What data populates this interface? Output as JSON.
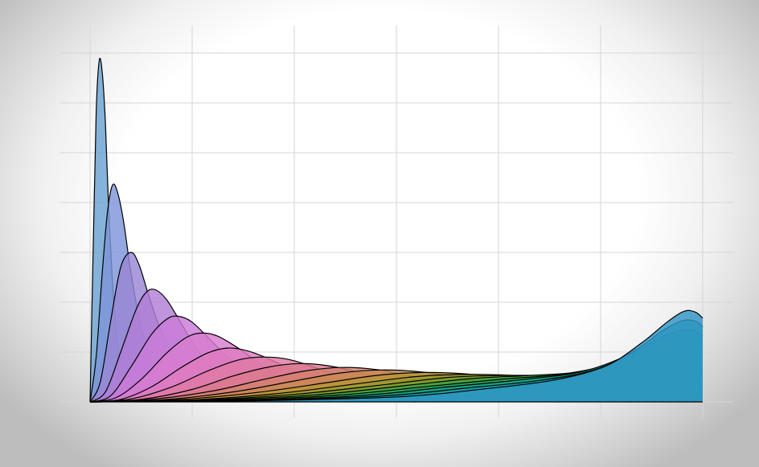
{
  "chart_data": {
    "type": "area",
    "title": "",
    "xlabel": "",
    "ylabel": "",
    "grid": true,
    "legend": "none",
    "xlim": [
      0,
      6
    ],
    "ylim": [
      0,
      7
    ],
    "x_gridlines": [
      0,
      1,
      2,
      3,
      4,
      5,
      6
    ],
    "y_gridlines": [
      0,
      1,
      2,
      3,
      4,
      5,
      6,
      7
    ],
    "series": [
      {
        "values": [
          [
            0.0,
            0.0
          ],
          [
            0.03,
            3.0
          ],
          [
            0.06,
            5.8
          ],
          [
            0.09,
            6.85
          ],
          [
            0.12,
            6.6
          ],
          [
            0.15,
            5.6
          ],
          [
            0.18,
            4.0
          ],
          [
            0.22,
            2.4
          ],
          [
            0.26,
            1.3
          ],
          [
            0.32,
            0.5
          ],
          [
            0.4,
            0.15
          ],
          [
            0.6,
            0.0
          ]
        ],
        "color": "#6ba2d2"
      },
      {
        "values": [
          [
            0.0,
            0.0
          ],
          [
            0.06,
            0.9
          ],
          [
            0.12,
            2.6
          ],
          [
            0.17,
            3.8
          ],
          [
            0.22,
            4.35
          ],
          [
            0.27,
            4.2
          ],
          [
            0.33,
            3.6
          ],
          [
            0.4,
            2.6
          ],
          [
            0.5,
            1.5
          ],
          [
            0.62,
            0.75
          ],
          [
            0.8,
            0.25
          ],
          [
            1.1,
            0.0
          ]
        ],
        "color": "#7e95d8"
      },
      {
        "values": [
          [
            0.0,
            0.0
          ],
          [
            0.1,
            0.4
          ],
          [
            0.2,
            1.6
          ],
          [
            0.3,
            2.7
          ],
          [
            0.4,
            3.0
          ],
          [
            0.48,
            2.75
          ],
          [
            0.58,
            2.1
          ],
          [
            0.7,
            1.4
          ],
          [
            0.85,
            0.8
          ],
          [
            1.05,
            0.35
          ],
          [
            1.3,
            0.1
          ],
          [
            1.6,
            0.0
          ]
        ],
        "color": "#9a86d6"
      },
      {
        "values": [
          [
            0.0,
            0.0
          ],
          [
            0.15,
            0.2
          ],
          [
            0.3,
            1.0
          ],
          [
            0.45,
            1.85
          ],
          [
            0.55,
            2.2
          ],
          [
            0.64,
            2.25
          ],
          [
            0.75,
            2.05
          ],
          [
            0.9,
            1.55
          ],
          [
            1.05,
            1.05
          ],
          [
            1.25,
            0.55
          ],
          [
            1.5,
            0.22
          ],
          [
            1.9,
            0.05
          ],
          [
            2.2,
            0.0
          ]
        ],
        "color": "#b17ed6"
      },
      {
        "values": [
          [
            0.0,
            0.0
          ],
          [
            0.2,
            0.12
          ],
          [
            0.4,
            0.7
          ],
          [
            0.6,
            1.35
          ],
          [
            0.75,
            1.66
          ],
          [
            0.86,
            1.72
          ],
          [
            1.0,
            1.6
          ],
          [
            1.2,
            1.2
          ],
          [
            1.4,
            0.8
          ],
          [
            1.65,
            0.42
          ],
          [
            2.0,
            0.15
          ],
          [
            2.4,
            0.03
          ],
          [
            2.7,
            0.0
          ]
        ],
        "color": "#c97bd8"
      },
      {
        "values": [
          [
            0.0,
            0.0
          ],
          [
            0.25,
            0.08
          ],
          [
            0.5,
            0.45
          ],
          [
            0.75,
            0.98
          ],
          [
            0.95,
            1.3
          ],
          [
            1.1,
            1.38
          ],
          [
            1.25,
            1.32
          ],
          [
            1.45,
            1.08
          ],
          [
            1.7,
            0.72
          ],
          [
            2.0,
            0.38
          ],
          [
            2.4,
            0.12
          ],
          [
            2.9,
            0.02
          ],
          [
            3.2,
            0.0
          ]
        ],
        "color": "#d87ccf"
      },
      {
        "values": [
          [
            0.0,
            0.0
          ],
          [
            0.3,
            0.05
          ],
          [
            0.6,
            0.3
          ],
          [
            0.9,
            0.7
          ],
          [
            1.15,
            0.98
          ],
          [
            1.35,
            1.08
          ],
          [
            1.55,
            1.02
          ],
          [
            1.8,
            0.82
          ],
          [
            2.1,
            0.52
          ],
          [
            2.45,
            0.27
          ],
          [
            2.9,
            0.08
          ],
          [
            3.4,
            0.0
          ]
        ],
        "color": "#de7bbf"
      },
      {
        "values": [
          [
            0.0,
            0.0
          ],
          [
            0.4,
            0.06
          ],
          [
            0.8,
            0.3
          ],
          [
            1.15,
            0.62
          ],
          [
            1.45,
            0.84
          ],
          [
            1.7,
            0.9
          ],
          [
            1.95,
            0.85
          ],
          [
            2.25,
            0.66
          ],
          [
            2.6,
            0.42
          ],
          [
            3.0,
            0.2
          ],
          [
            3.5,
            0.06
          ],
          [
            4.0,
            0.0
          ]
        ],
        "color": "#df7aa6"
      },
      {
        "values": [
          [
            0.0,
            0.0
          ],
          [
            0.5,
            0.05
          ],
          [
            1.0,
            0.25
          ],
          [
            1.4,
            0.52
          ],
          [
            1.75,
            0.7
          ],
          [
            2.05,
            0.77
          ],
          [
            2.35,
            0.72
          ],
          [
            2.7,
            0.56
          ],
          [
            3.1,
            0.36
          ],
          [
            3.6,
            0.17
          ],
          [
            4.1,
            0.05
          ],
          [
            4.6,
            0.0
          ]
        ],
        "color": "#dc7a8c"
      },
      {
        "values": [
          [
            0.0,
            0.0
          ],
          [
            0.6,
            0.05
          ],
          [
            1.2,
            0.22
          ],
          [
            1.7,
            0.45
          ],
          [
            2.1,
            0.62
          ],
          [
            2.45,
            0.69
          ],
          [
            2.8,
            0.65
          ],
          [
            3.2,
            0.5
          ],
          [
            3.65,
            0.32
          ],
          [
            4.2,
            0.15
          ],
          [
            4.8,
            0.04
          ],
          [
            5.3,
            0.0
          ]
        ],
        "color": "#d4806e"
      },
      {
        "values": [
          [
            0.0,
            0.0
          ],
          [
            0.7,
            0.04
          ],
          [
            1.4,
            0.2
          ],
          [
            2.0,
            0.42
          ],
          [
            2.45,
            0.58
          ],
          [
            2.85,
            0.64
          ],
          [
            3.25,
            0.6
          ],
          [
            3.7,
            0.47
          ],
          [
            4.2,
            0.3
          ],
          [
            4.8,
            0.14
          ],
          [
            5.4,
            0.05
          ],
          [
            6.0,
            0.01
          ]
        ],
        "color": "#c98a52"
      },
      {
        "values": [
          [
            0.0,
            0.0
          ],
          [
            0.8,
            0.04
          ],
          [
            1.6,
            0.18
          ],
          [
            2.3,
            0.38
          ],
          [
            2.8,
            0.53
          ],
          [
            3.25,
            0.59
          ],
          [
            3.7,
            0.56
          ],
          [
            4.2,
            0.45
          ],
          [
            4.75,
            0.31
          ],
          [
            5.3,
            0.2
          ],
          [
            5.7,
            0.15
          ],
          [
            6.0,
            0.14
          ]
        ],
        "color": "#b89536"
      },
      {
        "values": [
          [
            0.0,
            0.0
          ],
          [
            0.9,
            0.03
          ],
          [
            1.8,
            0.16
          ],
          [
            2.6,
            0.36
          ],
          [
            3.15,
            0.5
          ],
          [
            3.6,
            0.55
          ],
          [
            4.05,
            0.54
          ],
          [
            4.55,
            0.47
          ],
          [
            5.05,
            0.4
          ],
          [
            5.5,
            0.38
          ],
          [
            5.8,
            0.4
          ],
          [
            6.0,
            0.42
          ]
        ],
        "color": "#9a9a2e"
      },
      {
        "values": [
          [
            0.0,
            0.0
          ],
          [
            1.0,
            0.03
          ],
          [
            2.0,
            0.15
          ],
          [
            2.9,
            0.35
          ],
          [
            3.5,
            0.49
          ],
          [
            4.0,
            0.53
          ],
          [
            4.5,
            0.53
          ],
          [
            5.0,
            0.54
          ],
          [
            5.4,
            0.62
          ],
          [
            5.7,
            0.72
          ],
          [
            5.9,
            0.74
          ],
          [
            6.0,
            0.72
          ]
        ],
        "color": "#74a030"
      },
      {
        "values": [
          [
            0.0,
            0.0
          ],
          [
            1.1,
            0.03
          ],
          [
            2.2,
            0.14
          ],
          [
            3.1,
            0.33
          ],
          [
            3.75,
            0.47
          ],
          [
            4.3,
            0.53
          ],
          [
            4.8,
            0.6
          ],
          [
            5.25,
            0.78
          ],
          [
            5.6,
            0.95
          ],
          [
            5.85,
            1.0
          ],
          [
            6.0,
            0.93
          ]
        ],
        "color": "#3fa23f"
      },
      {
        "values": [
          [
            0.0,
            0.0
          ],
          [
            1.2,
            0.02
          ],
          [
            2.4,
            0.13
          ],
          [
            3.3,
            0.31
          ],
          [
            4.0,
            0.45
          ],
          [
            4.6,
            0.55
          ],
          [
            5.1,
            0.75
          ],
          [
            5.5,
            1.05
          ],
          [
            5.75,
            1.22
          ],
          [
            5.9,
            1.24
          ],
          [
            6.0,
            1.15
          ]
        ],
        "color": "#21a265"
      },
      {
        "values": [
          [
            0.0,
            0.0
          ],
          [
            1.3,
            0.02
          ],
          [
            2.6,
            0.12
          ],
          [
            3.5,
            0.3
          ],
          [
            4.2,
            0.44
          ],
          [
            4.8,
            0.6
          ],
          [
            5.25,
            0.92
          ],
          [
            5.55,
            1.25
          ],
          [
            5.78,
            1.43
          ],
          [
            5.92,
            1.43
          ],
          [
            6.0,
            1.32
          ]
        ],
        "color": "#10a187"
      },
      {
        "values": [
          [
            0.0,
            0.0
          ],
          [
            1.4,
            0.02
          ],
          [
            2.8,
            0.11
          ],
          [
            3.7,
            0.28
          ],
          [
            4.4,
            0.43
          ],
          [
            4.95,
            0.65
          ],
          [
            5.35,
            1.05
          ],
          [
            5.6,
            1.42
          ],
          [
            5.8,
            1.63
          ],
          [
            5.93,
            1.62
          ],
          [
            6.0,
            1.5
          ]
        ],
        "color": "#1a9eaa"
      },
      {
        "values": [
          [
            0.0,
            0.0
          ],
          [
            1.5,
            0.02
          ],
          [
            3.0,
            0.1
          ],
          [
            3.9,
            0.27
          ],
          [
            4.55,
            0.44
          ],
          [
            5.05,
            0.72
          ],
          [
            5.4,
            1.18
          ],
          [
            5.65,
            1.6
          ],
          [
            5.82,
            1.82
          ],
          [
            5.93,
            1.8
          ],
          [
            6.0,
            1.68
          ]
        ],
        "color": "#3295c4"
      }
    ]
  }
}
